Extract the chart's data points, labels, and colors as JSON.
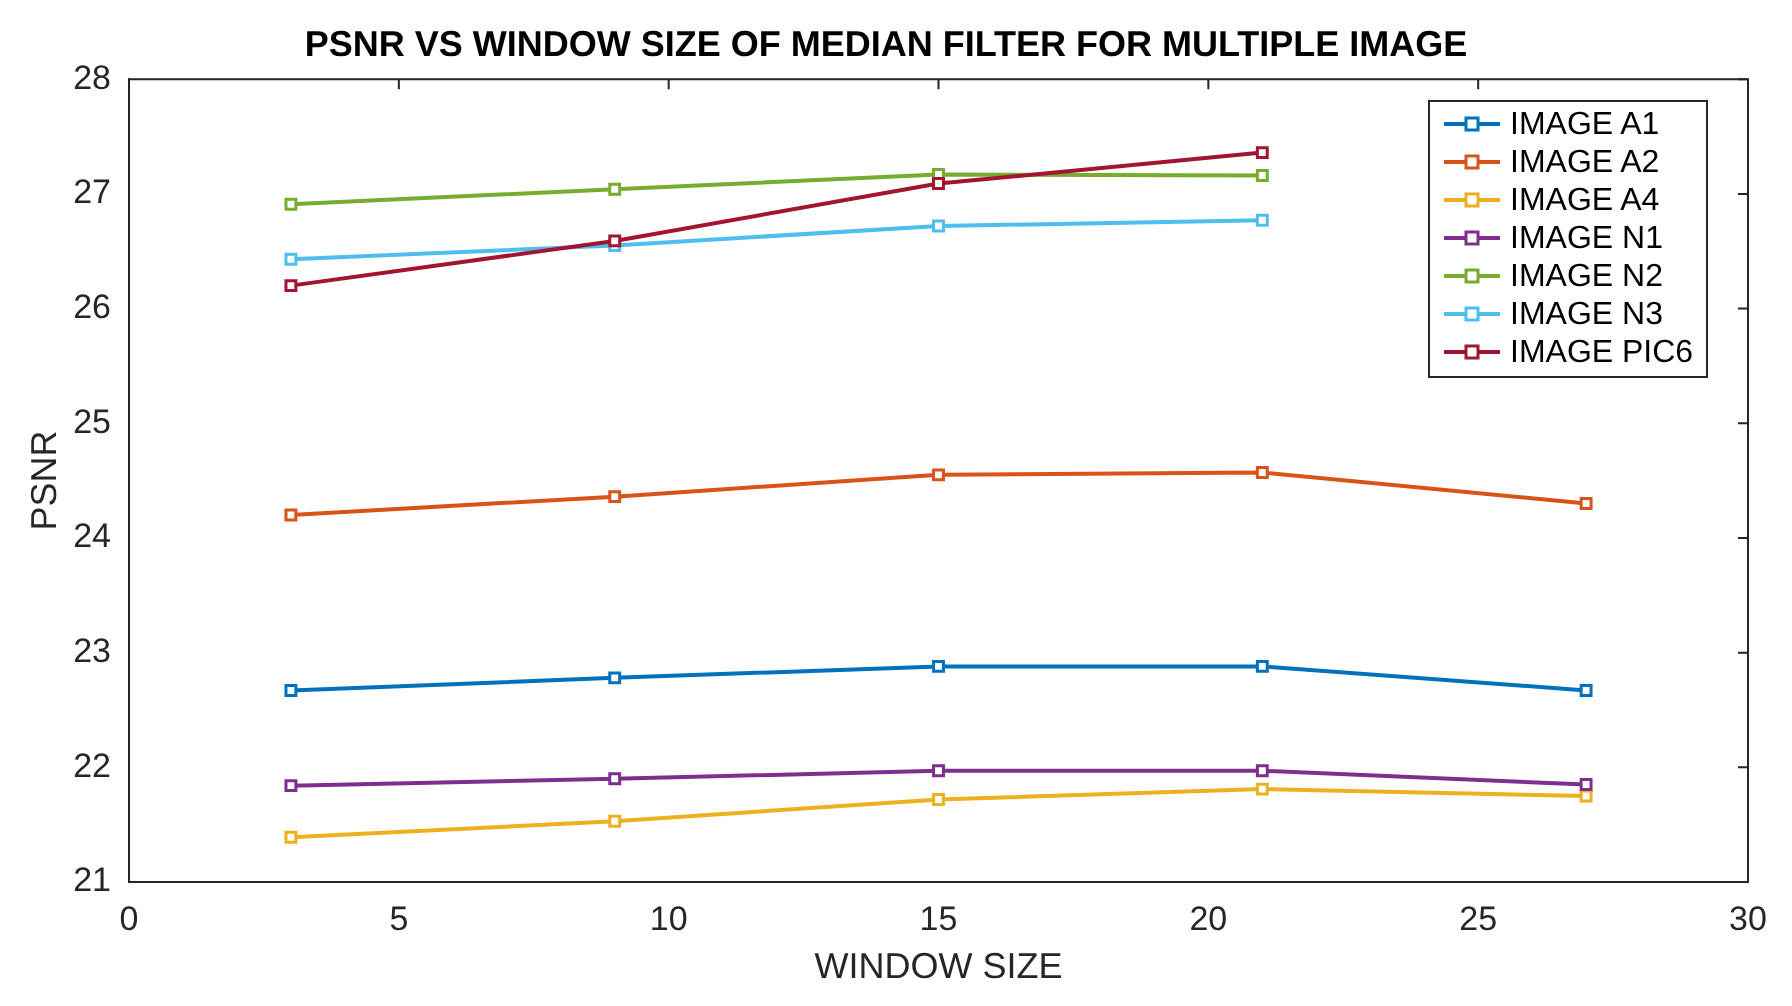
{
  "chart_data": {
    "type": "line",
    "title": "PSNR VS WINDOW SIZE OF MEDIAN FILTER FOR MULTIPLE IMAGE",
    "xlabel": "WINDOW SIZE",
    "ylabel": "PSNR",
    "x": [
      3,
      9,
      15,
      21,
      27
    ],
    "series": [
      {
        "name": "IMAGE A1",
        "color": "#0072bd",
        "values": [
          22.67,
          22.78,
          22.88,
          22.88,
          22.67
        ]
      },
      {
        "name": "IMAGE A2",
        "color": "#d95319",
        "values": [
          24.2,
          24.36,
          24.55,
          24.57,
          24.3
        ]
      },
      {
        "name": "IMAGE A4",
        "color": "#edb120",
        "values": [
          21.39,
          21.53,
          21.72,
          21.81,
          21.75
        ]
      },
      {
        "name": "IMAGE N1",
        "color": "#7e2f8e",
        "values": [
          21.84,
          21.9,
          21.97,
          21.97,
          21.85
        ]
      },
      {
        "name": "IMAGE N2",
        "color": "#77ac30",
        "values": [
          26.91,
          27.04,
          27.17,
          27.16,
          null
        ]
      },
      {
        "name": "IMAGE N3",
        "color": "#4dbeee",
        "values": [
          26.43,
          26.55,
          26.72,
          26.77,
          null
        ]
      },
      {
        "name": "IMAGE PIC6",
        "color": "#a2142f",
        "values": [
          26.2,
          26.59,
          27.09,
          27.36,
          null
        ]
      }
    ],
    "xlim": [
      0,
      30
    ],
    "xticks": [
      0,
      5,
      10,
      15,
      20,
      25,
      30
    ],
    "ylim": [
      21,
      28
    ],
    "yticks": [
      21,
      22,
      23,
      24,
      25,
      26,
      27,
      28
    ],
    "grid": false,
    "legend": "top right",
    "marker": "square",
    "line_style": "solid"
  }
}
